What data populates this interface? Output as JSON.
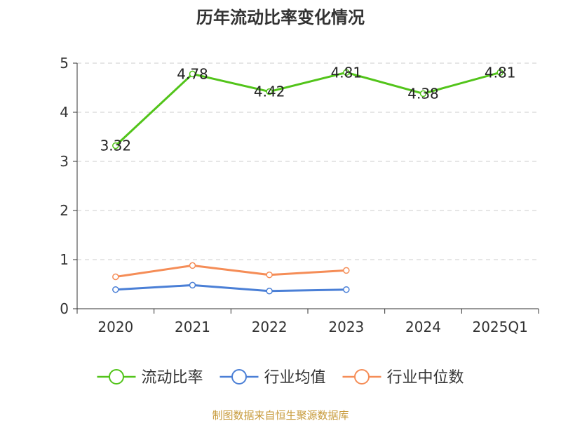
{
  "chart_data": {
    "type": "line",
    "title": "历年流动比率变化情况",
    "categories": [
      "2020",
      "2021",
      "2022",
      "2023",
      "2024",
      "2025Q1"
    ],
    "y_ticks": [
      "0",
      "1",
      "2",
      "3",
      "4",
      "5"
    ],
    "ylim": [
      0,
      5
    ],
    "grid": true,
    "legend_position": "bottom",
    "series": [
      {
        "name": "流动比率",
        "color": "#52c41a",
        "values": [
          3.32,
          4.78,
          4.42,
          4.81,
          4.38,
          4.81
        ],
        "labels": [
          "3.32",
          "4.78",
          "4.42",
          "4.81",
          "4.38",
          "4.81"
        ]
      },
      {
        "name": "行业均值",
        "color": "#4a7fd6",
        "values": [
          0.39,
          0.48,
          0.36,
          0.39,
          null,
          null
        ]
      },
      {
        "name": "行业中位数",
        "color": "#f58d57",
        "values": [
          0.65,
          0.88,
          0.69,
          0.78,
          null,
          null
        ]
      }
    ]
  },
  "source": {
    "text": "制图数据来自恒生聚源数据库",
    "color": "#c79a3a"
  }
}
